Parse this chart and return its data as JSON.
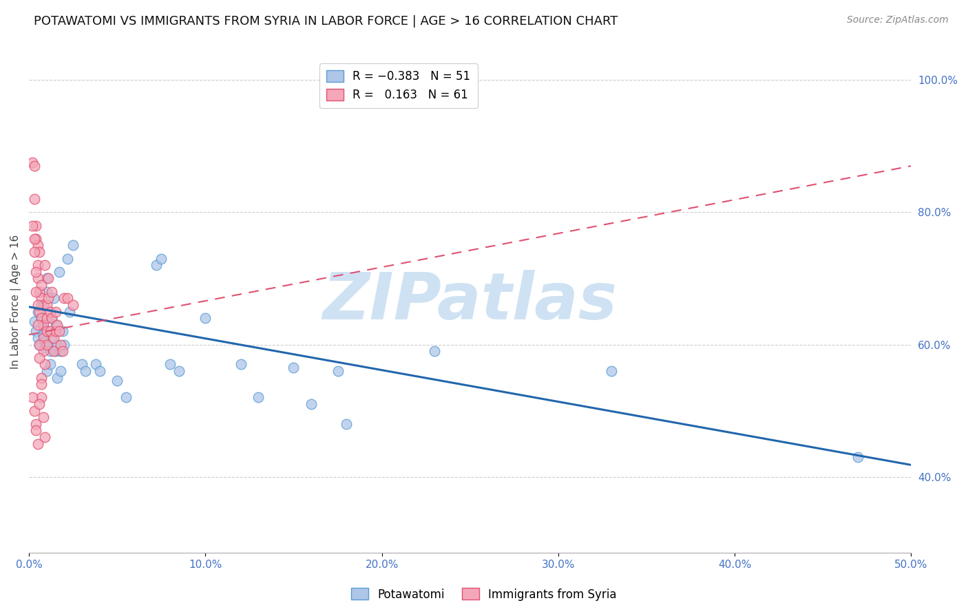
{
  "title": "POTAWATOMI VS IMMIGRANTS FROM SYRIA IN LABOR FORCE | AGE > 16 CORRELATION CHART",
  "source": "Source: ZipAtlas.com",
  "ylabel": "In Labor Force | Age > 16",
  "xlim": [
    0.0,
    0.5
  ],
  "ylim": [
    0.285,
    1.045
  ],
  "xticks": [
    0.0,
    0.1,
    0.2,
    0.3,
    0.4,
    0.5
  ],
  "xtick_labels": [
    "0.0%",
    "10.0%",
    "20.0%",
    "30.0%",
    "40.0%",
    "50.0%"
  ],
  "ytick_labels_right": [
    "40.0%",
    "60.0%",
    "80.0%",
    "100.0%"
  ],
  "yticks_right": [
    0.4,
    0.6,
    0.8,
    1.0
  ],
  "watermark": "ZIPatlas",
  "watermark_color": "#cfe2f3",
  "background_color": "#ffffff",
  "grid_color": "#cccccc",
  "title_fontsize": 13,
  "source_fontsize": 10,
  "potawatomi_color": "#aec6e8",
  "potawatomi_edge_color": "#5b9bd5",
  "syria_color": "#f4a7b9",
  "syria_edge_color": "#e05070",
  "pot_line_color": "#2166ac",
  "syr_line_color": "#e05070",
  "pot_line_y0": 0.657,
  "pot_line_y1": 0.418,
  "syr_line_y0": 0.615,
  "syr_line_y1": 0.87,
  "potawatomi_x": [
    0.003,
    0.004,
    0.005,
    0.005,
    0.006,
    0.007,
    0.007,
    0.008,
    0.008,
    0.009,
    0.009,
    0.01,
    0.01,
    0.01,
    0.011,
    0.012,
    0.012,
    0.013,
    0.013,
    0.014,
    0.015,
    0.015,
    0.016,
    0.016,
    0.017,
    0.018,
    0.018,
    0.019,
    0.02,
    0.022,
    0.023,
    0.025,
    0.03,
    0.032,
    0.038,
    0.04,
    0.05,
    0.055,
    0.072,
    0.075,
    0.08,
    0.085,
    0.1,
    0.12,
    0.13,
    0.15,
    0.16,
    0.175,
    0.18,
    0.23,
    0.33,
    0.47
  ],
  "potawatomi_y": [
    0.635,
    0.62,
    0.61,
    0.65,
    0.6,
    0.66,
    0.64,
    0.625,
    0.615,
    0.605,
    0.595,
    0.68,
    0.7,
    0.56,
    0.6,
    0.59,
    0.57,
    0.64,
    0.61,
    0.67,
    0.59,
    0.63,
    0.55,
    0.6,
    0.71,
    0.59,
    0.56,
    0.62,
    0.6,
    0.73,
    0.65,
    0.75,
    0.57,
    0.56,
    0.57,
    0.56,
    0.545,
    0.52,
    0.72,
    0.73,
    0.57,
    0.56,
    0.64,
    0.57,
    0.52,
    0.565,
    0.51,
    0.56,
    0.48,
    0.59,
    0.56,
    0.43
  ],
  "syria_x": [
    0.002,
    0.003,
    0.003,
    0.004,
    0.004,
    0.005,
    0.005,
    0.005,
    0.006,
    0.006,
    0.006,
    0.007,
    0.007,
    0.007,
    0.008,
    0.008,
    0.008,
    0.008,
    0.009,
    0.009,
    0.01,
    0.01,
    0.01,
    0.01,
    0.011,
    0.011,
    0.012,
    0.012,
    0.013,
    0.013,
    0.014,
    0.014,
    0.015,
    0.015,
    0.016,
    0.017,
    0.018,
    0.019,
    0.02,
    0.022,
    0.025,
    0.002,
    0.003,
    0.003,
    0.004,
    0.004,
    0.005,
    0.005,
    0.006,
    0.006,
    0.007,
    0.007,
    0.008,
    0.009,
    0.002,
    0.003,
    0.004,
    0.004,
    0.005,
    0.006,
    0.007
  ],
  "syria_y": [
    0.875,
    0.87,
    0.82,
    0.78,
    0.76,
    0.75,
    0.72,
    0.7,
    0.68,
    0.74,
    0.65,
    0.69,
    0.67,
    0.64,
    0.66,
    0.63,
    0.61,
    0.59,
    0.57,
    0.72,
    0.66,
    0.64,
    0.62,
    0.6,
    0.7,
    0.67,
    0.65,
    0.62,
    0.68,
    0.64,
    0.61,
    0.59,
    0.65,
    0.62,
    0.63,
    0.62,
    0.6,
    0.59,
    0.67,
    0.67,
    0.66,
    0.78,
    0.76,
    0.74,
    0.71,
    0.68,
    0.66,
    0.63,
    0.6,
    0.58,
    0.55,
    0.52,
    0.49,
    0.46,
    0.52,
    0.5,
    0.48,
    0.47,
    0.45,
    0.51,
    0.54
  ]
}
